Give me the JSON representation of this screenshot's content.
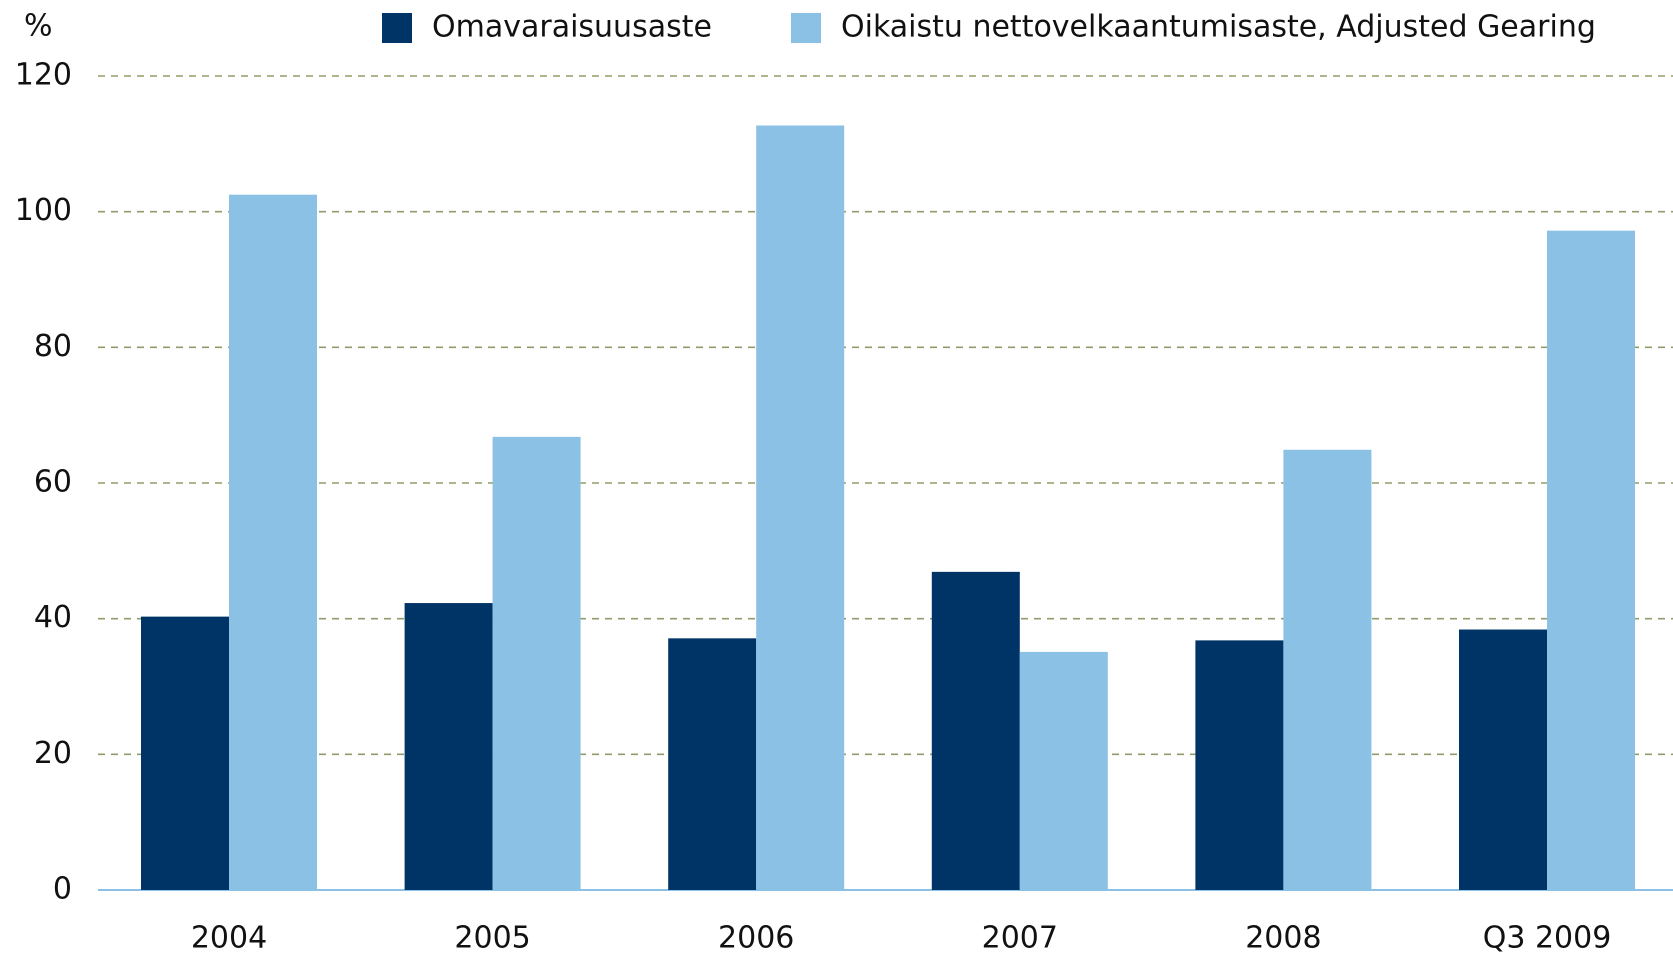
{
  "chart_data": {
    "type": "bar",
    "y_label": "%",
    "categories": [
      "2004",
      "2005",
      "2006",
      "2007",
      "2008",
      "Q3 2009"
    ],
    "series": [
      {
        "name": "Omavaraisuusaste",
        "color": "#003466",
        "values": [
          40.3,
          42.3,
          37.1,
          46.9,
          36.8,
          38.4
        ]
      },
      {
        "name": "Oikaistu nettovelkaantumisaste, Adjusted Gearing",
        "color": "#8bc1e5",
        "values": [
          102.5,
          66.8,
          112.7,
          35.1,
          64.9,
          97.2
        ]
      }
    ],
    "ylim": [
      0,
      120
    ],
    "yticks": [
      0,
      20,
      40,
      60,
      80,
      100,
      120
    ],
    "grid": true,
    "legend": "top"
  }
}
